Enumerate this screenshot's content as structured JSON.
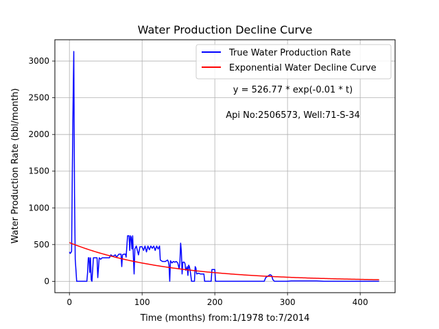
{
  "chart_data": {
    "type": "line",
    "title": "Water Production Decline Curve",
    "xlabel": "Time (months) from:1/1978 to:7/2014",
    "ylabel": "Water Production Rate (bbl/month)",
    "xlim": [
      -20,
      448
    ],
    "ylim": [
      -155,
      3290
    ],
    "xticks": [
      0,
      100,
      200,
      300,
      400
    ],
    "yticks": [
      0,
      500,
      1000,
      1500,
      2000,
      2500,
      3000
    ],
    "grid": true,
    "legend_position": "top-right",
    "annotations": [
      "y = 526.77 * exp(-0.01 * t)",
      "Api No:2506573, Well:71-S-34"
    ],
    "series": [
      {
        "name": "True Water Production Rate",
        "color": "#0000ff",
        "points": [
          [
            0,
            400
          ],
          [
            1,
            380
          ],
          [
            2,
            390
          ],
          [
            3,
            410
          ],
          [
            4,
            1500
          ],
          [
            5,
            2400
          ],
          [
            6,
            3130
          ],
          [
            7,
            1200
          ],
          [
            8,
            300
          ],
          [
            9,
            150
          ],
          [
            10,
            0
          ],
          [
            15,
            0
          ],
          [
            20,
            0
          ],
          [
            24,
            0
          ],
          [
            25,
            120
          ],
          [
            26,
            320
          ],
          [
            27,
            320
          ],
          [
            28,
            120
          ],
          [
            29,
            320
          ],
          [
            30,
            20
          ],
          [
            31,
            0
          ],
          [
            33,
            320
          ],
          [
            36,
            320
          ],
          [
            38,
            320
          ],
          [
            39,
            50
          ],
          [
            41,
            320
          ],
          [
            43,
            300
          ],
          [
            45,
            320
          ],
          [
            50,
            320
          ],
          [
            55,
            320
          ],
          [
            57,
            360
          ],
          [
            60,
            340
          ],
          [
            63,
            360
          ],
          [
            65,
            330
          ],
          [
            68,
            370
          ],
          [
            71,
            370
          ],
          [
            72,
            200
          ],
          [
            73,
            360
          ],
          [
            75,
            370
          ],
          [
            77,
            370
          ],
          [
            78,
            330
          ],
          [
            80,
            620
          ],
          [
            82,
            620
          ],
          [
            83,
            420
          ],
          [
            84,
            620
          ],
          [
            85,
            600
          ],
          [
            86,
            440
          ],
          [
            87,
            620
          ],
          [
            88,
            330
          ],
          [
            89,
            100
          ],
          [
            90,
            440
          ],
          [
            92,
            480
          ],
          [
            95,
            360
          ],
          [
            97,
            470
          ],
          [
            100,
            470
          ],
          [
            102,
            420
          ],
          [
            104,
            480
          ],
          [
            106,
            400
          ],
          [
            108,
            480
          ],
          [
            110,
            430
          ],
          [
            112,
            480
          ],
          [
            114,
            450
          ],
          [
            116,
            480
          ],
          [
            118,
            420
          ],
          [
            120,
            480
          ],
          [
            122,
            440
          ],
          [
            124,
            480
          ],
          [
            125,
            290
          ],
          [
            128,
            270
          ],
          [
            132,
            270
          ],
          [
            135,
            290
          ],
          [
            136,
            270
          ],
          [
            137,
            220
          ],
          [
            138,
            0
          ],
          [
            139,
            280
          ],
          [
            141,
            250
          ],
          [
            143,
            270
          ],
          [
            145,
            260
          ],
          [
            147,
            270
          ],
          [
            149,
            250
          ],
          [
            151,
            170
          ],
          [
            152,
            270
          ],
          [
            153,
            520
          ],
          [
            154,
            400
          ],
          [
            155,
            100
          ],
          [
            156,
            260
          ],
          [
            158,
            260
          ],
          [
            159,
            240
          ],
          [
            160,
            150
          ],
          [
            162,
            200
          ],
          [
            163,
            80
          ],
          [
            164,
            220
          ],
          [
            165,
            200
          ],
          [
            166,
            150
          ],
          [
            167,
            80
          ],
          [
            168,
            0
          ],
          [
            172,
            0
          ],
          [
            173,
            200
          ],
          [
            174,
            180
          ],
          [
            175,
            100
          ],
          [
            178,
            110
          ],
          [
            180,
            100
          ],
          [
            182,
            100
          ],
          [
            185,
            100
          ],
          [
            186,
            0
          ],
          [
            190,
            0
          ],
          [
            195,
            0
          ],
          [
            196,
            160
          ],
          [
            198,
            160
          ],
          [
            200,
            160
          ],
          [
            201,
            0
          ],
          [
            210,
            0
          ],
          [
            230,
            0
          ],
          [
            250,
            0
          ],
          [
            268,
            0
          ],
          [
            270,
            50
          ],
          [
            273,
            70
          ],
          [
            276,
            90
          ],
          [
            278,
            80
          ],
          [
            280,
            20
          ],
          [
            282,
            0
          ],
          [
            290,
            0
          ],
          [
            300,
            0
          ],
          [
            305,
            5
          ],
          [
            310,
            5
          ],
          [
            320,
            5
          ],
          [
            330,
            5
          ],
          [
            340,
            5
          ],
          [
            350,
            0
          ],
          [
            380,
            0
          ],
          [
            426,
            0
          ]
        ]
      },
      {
        "name": "Exponential Water Decline Curve",
        "color": "#ff0000",
        "equation": {
          "a": 526.77,
          "b": 0.0075
        },
        "x_range": [
          0,
          426
        ]
      }
    ]
  }
}
